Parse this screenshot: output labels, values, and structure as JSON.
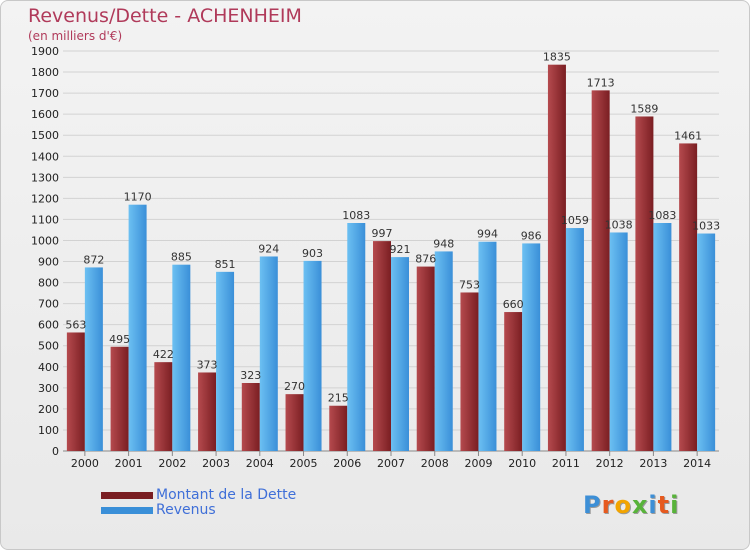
{
  "title": "Revenus/Dette - ACHENHEIM",
  "subtitle": "(en milliers d'€)",
  "logo_text": "Proxiti",
  "logo_colors": [
    "#3d8fd6",
    "#e65a1f",
    "#f2a400",
    "#58b33a",
    "#3d8fd6",
    "#e65a1f",
    "#58b33a"
  ],
  "colors": {
    "dette": "#7a1e22",
    "dette_light": "#b54a4e",
    "revenus": "#3a8fd8",
    "revenus_light": "#6cc0f2",
    "grid": "#d2d2d2",
    "axis_text": "#222222"
  },
  "legend": [
    {
      "label": "Montant de la Dette",
      "series": 0
    },
    {
      "label": "Revenus",
      "series": 1
    }
  ],
  "chart_data": {
    "type": "bar",
    "categories": [
      "2000",
      "2001",
      "2002",
      "2003",
      "2004",
      "2005",
      "2006",
      "2007",
      "2008",
      "2009",
      "2010",
      "2011",
      "2012",
      "2013",
      "2014"
    ],
    "series": [
      {
        "name": "Montant de la Dette",
        "values": [
          563,
          495,
          422,
          373,
          323,
          270,
          215,
          997,
          876,
          753,
          660,
          1835,
          1713,
          1589,
          1461
        ]
      },
      {
        "name": "Revenus",
        "values": [
          872,
          1170,
          885,
          851,
          924,
          903,
          1083,
          921,
          948,
          994,
          986,
          1059,
          1038,
          1083,
          1033
        ]
      }
    ],
    "ylim": [
      0,
      1900
    ],
    "yticks": [
      0,
      100,
      200,
      300,
      400,
      500,
      600,
      700,
      800,
      900,
      1000,
      1100,
      1200,
      1300,
      1400,
      1500,
      1600,
      1700,
      1800,
      1900
    ],
    "grid": true,
    "legend_position": "bottom-left"
  }
}
